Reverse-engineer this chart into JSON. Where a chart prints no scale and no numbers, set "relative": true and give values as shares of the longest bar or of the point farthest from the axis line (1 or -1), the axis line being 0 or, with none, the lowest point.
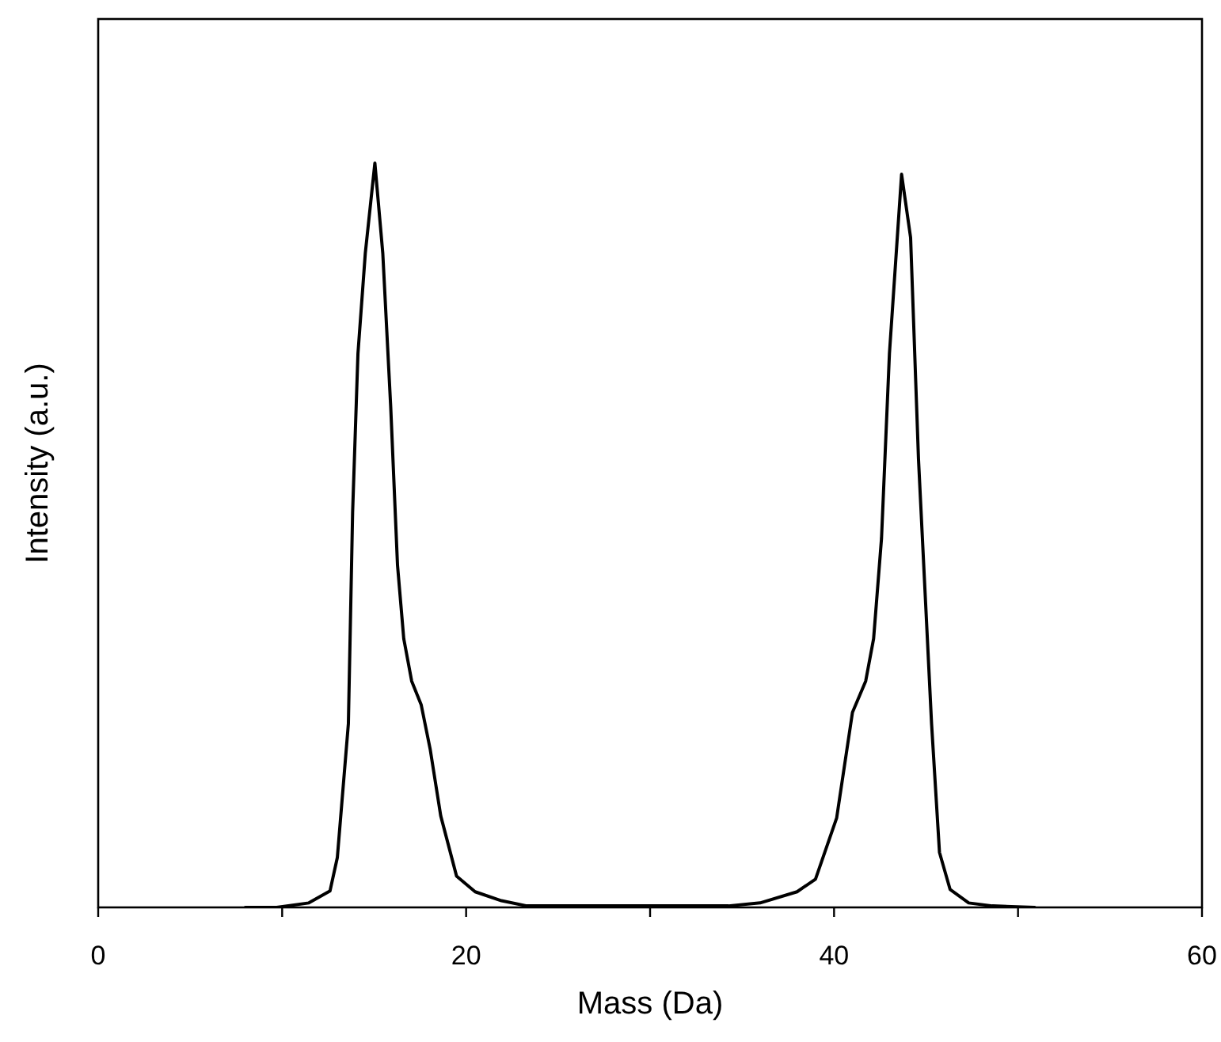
{
  "chart_data": {
    "type": "line",
    "xlabel": "Mass (Da)",
    "ylabel": "Intensity (a.u.)",
    "relative": true,
    "xlim": [
      0,
      60
    ],
    "xticks": [
      0,
      {
        "value": 10,
        "label": null
      },
      20,
      {
        "value": 30,
        "label": null
      },
      40,
      {
        "value": 50,
        "label": null
      },
      60
    ],
    "tick_labels": "x",
    "grid": false,
    "marker": "none",
    "line_style": "solid",
    "series": [
      {
        "color": "#000000",
        "x": [
          8,
          9.7,
          11.45,
          12.6,
          13.0,
          13.6,
          13.83,
          14.12,
          14.52,
          15.04,
          15.47,
          15.9,
          16.27,
          16.61,
          17.04,
          17.56,
          18.05,
          18.62,
          19.48,
          20.49,
          21.92,
          23.3,
          25,
          28,
          31,
          34.26,
          35.98,
          37.99,
          38.99,
          40.14,
          41.0,
          41.72,
          42.15,
          42.58,
          43.01,
          43.67,
          44.16,
          44.59,
          45.3,
          45.73,
          46.31,
          47.32,
          48.6,
          50.9
        ],
        "values": [
          0,
          0,
          0.006,
          0.022,
          0.067,
          0.247,
          0.531,
          0.744,
          0.879,
          1,
          0.879,
          0.673,
          0.46,
          0.361,
          0.304,
          0.272,
          0.212,
          0.123,
          0.042,
          0.021,
          0.009,
          0.002,
          0.002,
          0.002,
          0.002,
          0.002,
          0.006,
          0.021,
          0.038,
          0.12,
          0.262,
          0.304,
          0.361,
          0.496,
          0.744,
          0.985,
          0.9,
          0.602,
          0.247,
          0.074,
          0.024,
          0.006,
          0.002,
          0
        ]
      }
    ]
  }
}
